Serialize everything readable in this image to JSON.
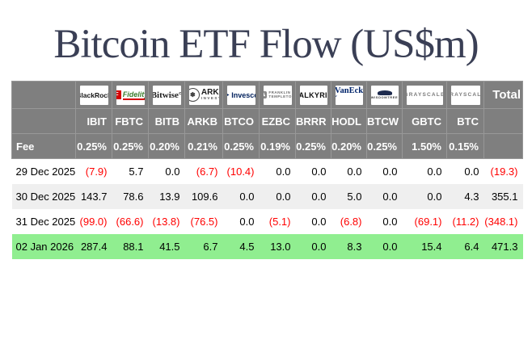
{
  "title": "Bitcoin ETF Flow (US$m)",
  "colors": {
    "header_bg": "#7f7f7f",
    "highlight_green": "#90ee90",
    "negative_red": "#ff0000",
    "row_alt": "#efefef",
    "title_navy": "#3a3f55",
    "fidelity_red": "#d40000",
    "invesco_navy": "#00205c",
    "vaneck_navy": "#00246b"
  },
  "table": {
    "fee_label": "Fee",
    "total_label": "Total",
    "providers": [
      {
        "name": "BlackRock",
        "ticker": "IBIT",
        "fee": "0.25%",
        "logo": {
          "type": "blackrock",
          "text": "BlackRock"
        }
      },
      {
        "name": "Fidelity",
        "ticker": "FBTC",
        "fee": "0.25%",
        "logo": {
          "type": "fidelity",
          "text": "Fidelity",
          "letter": "F"
        }
      },
      {
        "name": "Bitwise",
        "ticker": "BITB",
        "fee": "0.20%",
        "logo": {
          "type": "bitwise",
          "text": "Bitwise°"
        }
      },
      {
        "name": "ARK Invest",
        "ticker": "ARKB",
        "fee": "0.21%",
        "logo": {
          "type": "ark",
          "text": "ARK",
          "sub": "INVEST"
        }
      },
      {
        "name": "Invesco",
        "ticker": "BTCO",
        "fee": "0.25%",
        "logo": {
          "type": "invesco",
          "text": "Invesco"
        }
      },
      {
        "name": "Franklin Templeton",
        "ticker": "EZBC",
        "fee": "0.19%",
        "logo": {
          "type": "franklin",
          "text": "FRANKLIN",
          "sub": "TEMPLETON"
        }
      },
      {
        "name": "Valkyrie",
        "ticker": "BRRR",
        "fee": "0.25%",
        "logo": {
          "type": "valkyrie",
          "text": "VALKYRIE"
        }
      },
      {
        "name": "VanEck",
        "ticker": "HODL",
        "fee": "0.20%",
        "logo": {
          "type": "vaneck",
          "text": "VanEck´"
        }
      },
      {
        "name": "WisdomTree",
        "ticker": "BTCW",
        "fee": "0.25%",
        "logo": {
          "type": "wisdomtree",
          "text": "WISDOMTREE"
        }
      },
      {
        "name": "Grayscale",
        "ticker": "GBTC",
        "fee": "1.50%",
        "logo": {
          "type": "grayscale",
          "text": "GRAYSCALE"
        }
      },
      {
        "name": "Grayscale",
        "ticker": "BTC",
        "fee": "0.15%",
        "logo": {
          "type": "grayscale",
          "text": "GRAYSCALE"
        }
      }
    ],
    "rows": [
      {
        "date": "29 Dec 2025",
        "values": [
          "(7.9)",
          "5.7",
          "0.0",
          "(6.7)",
          "(10.4)",
          "0.0",
          "0.0",
          "0.0",
          "0.0",
          "0.0",
          "0.0"
        ],
        "total": "(19.3)",
        "highlight": false
      },
      {
        "date": "30 Dec 2025",
        "values": [
          "143.7",
          "78.6",
          "13.9",
          "109.6",
          "0.0",
          "0.0",
          "0.0",
          "5.0",
          "0.0",
          "0.0",
          "4.3"
        ],
        "total": "355.1",
        "highlight": false
      },
      {
        "date": "31 Dec 2025",
        "values": [
          "(99.0)",
          "(66.6)",
          "(13.8)",
          "(76.5)",
          "0.0",
          "(5.1)",
          "0.0",
          "(6.8)",
          "0.0",
          "(69.1)",
          "(11.2)"
        ],
        "total": "(348.1)",
        "highlight": false
      },
      {
        "date": "02 Jan 2026",
        "values": [
          "287.4",
          "88.1",
          "41.5",
          "6.7",
          "4.5",
          "13.0",
          "0.0",
          "8.3",
          "0.0",
          "15.4",
          "6.4"
        ],
        "total": "471.3",
        "highlight": true
      }
    ]
  },
  "chart_data": {
    "type": "table",
    "title": "Bitcoin ETF Flow (US$m)",
    "columns": [
      "Date",
      "IBIT",
      "FBTC",
      "BITB",
      "ARKB",
      "BTCO",
      "EZBC",
      "BRRR",
      "HODL",
      "BTCW",
      "GBTC",
      "BTC",
      "Total"
    ],
    "fees_pct": [
      0.25,
      0.25,
      0.2,
      0.21,
      0.25,
      0.19,
      0.25,
      0.2,
      0.25,
      1.5,
      0.15
    ],
    "rows": [
      {
        "date": "29 Dec 2025",
        "values": [
          -7.9,
          5.7,
          0.0,
          -6.7,
          -10.4,
          0.0,
          0.0,
          0.0,
          0.0,
          0.0,
          0.0
        ],
        "total": -19.3
      },
      {
        "date": "30 Dec 2025",
        "values": [
          143.7,
          78.6,
          13.9,
          109.6,
          0.0,
          0.0,
          0.0,
          5.0,
          0.0,
          0.0,
          4.3
        ],
        "total": 355.1
      },
      {
        "date": "31 Dec 2025",
        "values": [
          -99.0,
          -66.6,
          -13.8,
          -76.5,
          0.0,
          -5.1,
          0.0,
          -6.8,
          0.0,
          -69.1,
          -11.2
        ],
        "total": -348.1
      },
      {
        "date": "02 Jan 2026",
        "values": [
          287.4,
          88.1,
          41.5,
          6.7,
          4.5,
          13.0,
          0.0,
          8.3,
          0.0,
          15.4,
          6.4
        ],
        "total": 471.3
      }
    ]
  }
}
